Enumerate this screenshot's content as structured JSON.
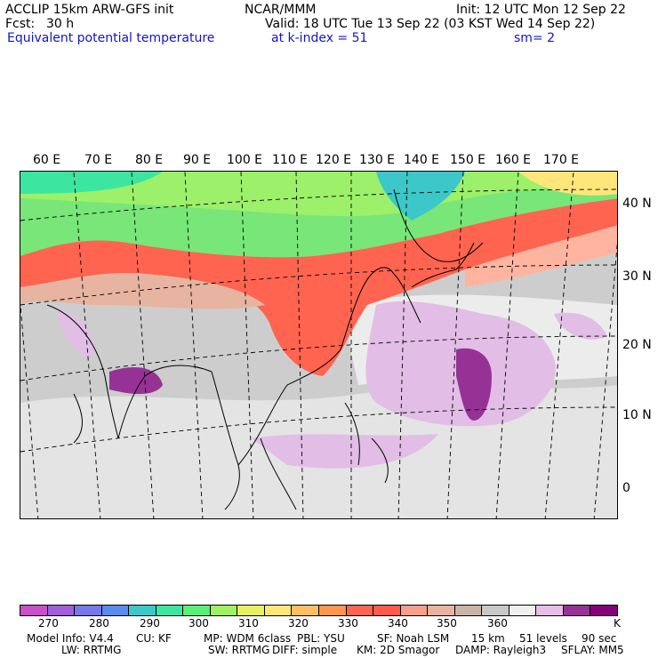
{
  "header": {
    "left1": "ACCLIP 15km ARW-GFS init",
    "left2_a": "Fcst:",
    "left2_b": "30 h",
    "center": "NCAR/MMM",
    "right1": "Init: 12 UTC Mon 12 Sep 22",
    "right2": "Valid: 18 UTC Tue 13 Sep 22 (03 KST Wed 14 Sep 22)",
    "field": "Equivalent potential temperature",
    "level": "at k-index =  51",
    "smooth": "sm= 2"
  },
  "map": {
    "lon_labels": [
      "60 E",
      "70 E",
      "80 E",
      "90 E",
      "100 E",
      "110 E",
      "120 E",
      "130 E",
      "140 E",
      "150 E",
      "160 E",
      "170 E"
    ],
    "lat_labels": [
      "40 N",
      "30 N",
      "20 N",
      "10 N",
      "0"
    ]
  },
  "colorbar": {
    "colors": [
      "#c850c8",
      "#a060d8",
      "#7878e6",
      "#5a8cf0",
      "#3cc8c8",
      "#3ce6a0",
      "#5af078",
      "#a0f064",
      "#e6f064",
      "#ffe67a",
      "#ffbe64",
      "#ff9650",
      "#ff6450",
      "#ff5a4b",
      "#f5a08c",
      "#e6b4a0",
      "#c8b4aa",
      "#c8c8c8",
      "#f0f0f0",
      "#e6bee6",
      "#963296",
      "#820078"
    ],
    "tick_labels": [
      "270",
      "280",
      "290",
      "300",
      "310",
      "320",
      "330",
      "340",
      "350",
      "360",
      "K"
    ]
  },
  "footer": {
    "line1": [
      "Model Info: V4.4",
      "CU: KF",
      "MP: WDM 6class",
      "PBL: YSU",
      "SF: Noah LSM",
      "15 km",
      "51 levels",
      "90 sec"
    ],
    "line2": [
      "LW: RRTMG",
      "SW: RRTMG",
      "DIFF: simple",
      "KM: 2D Smagor",
      "DAMP: Rayleigh3",
      "SFLAY: MM5"
    ]
  }
}
